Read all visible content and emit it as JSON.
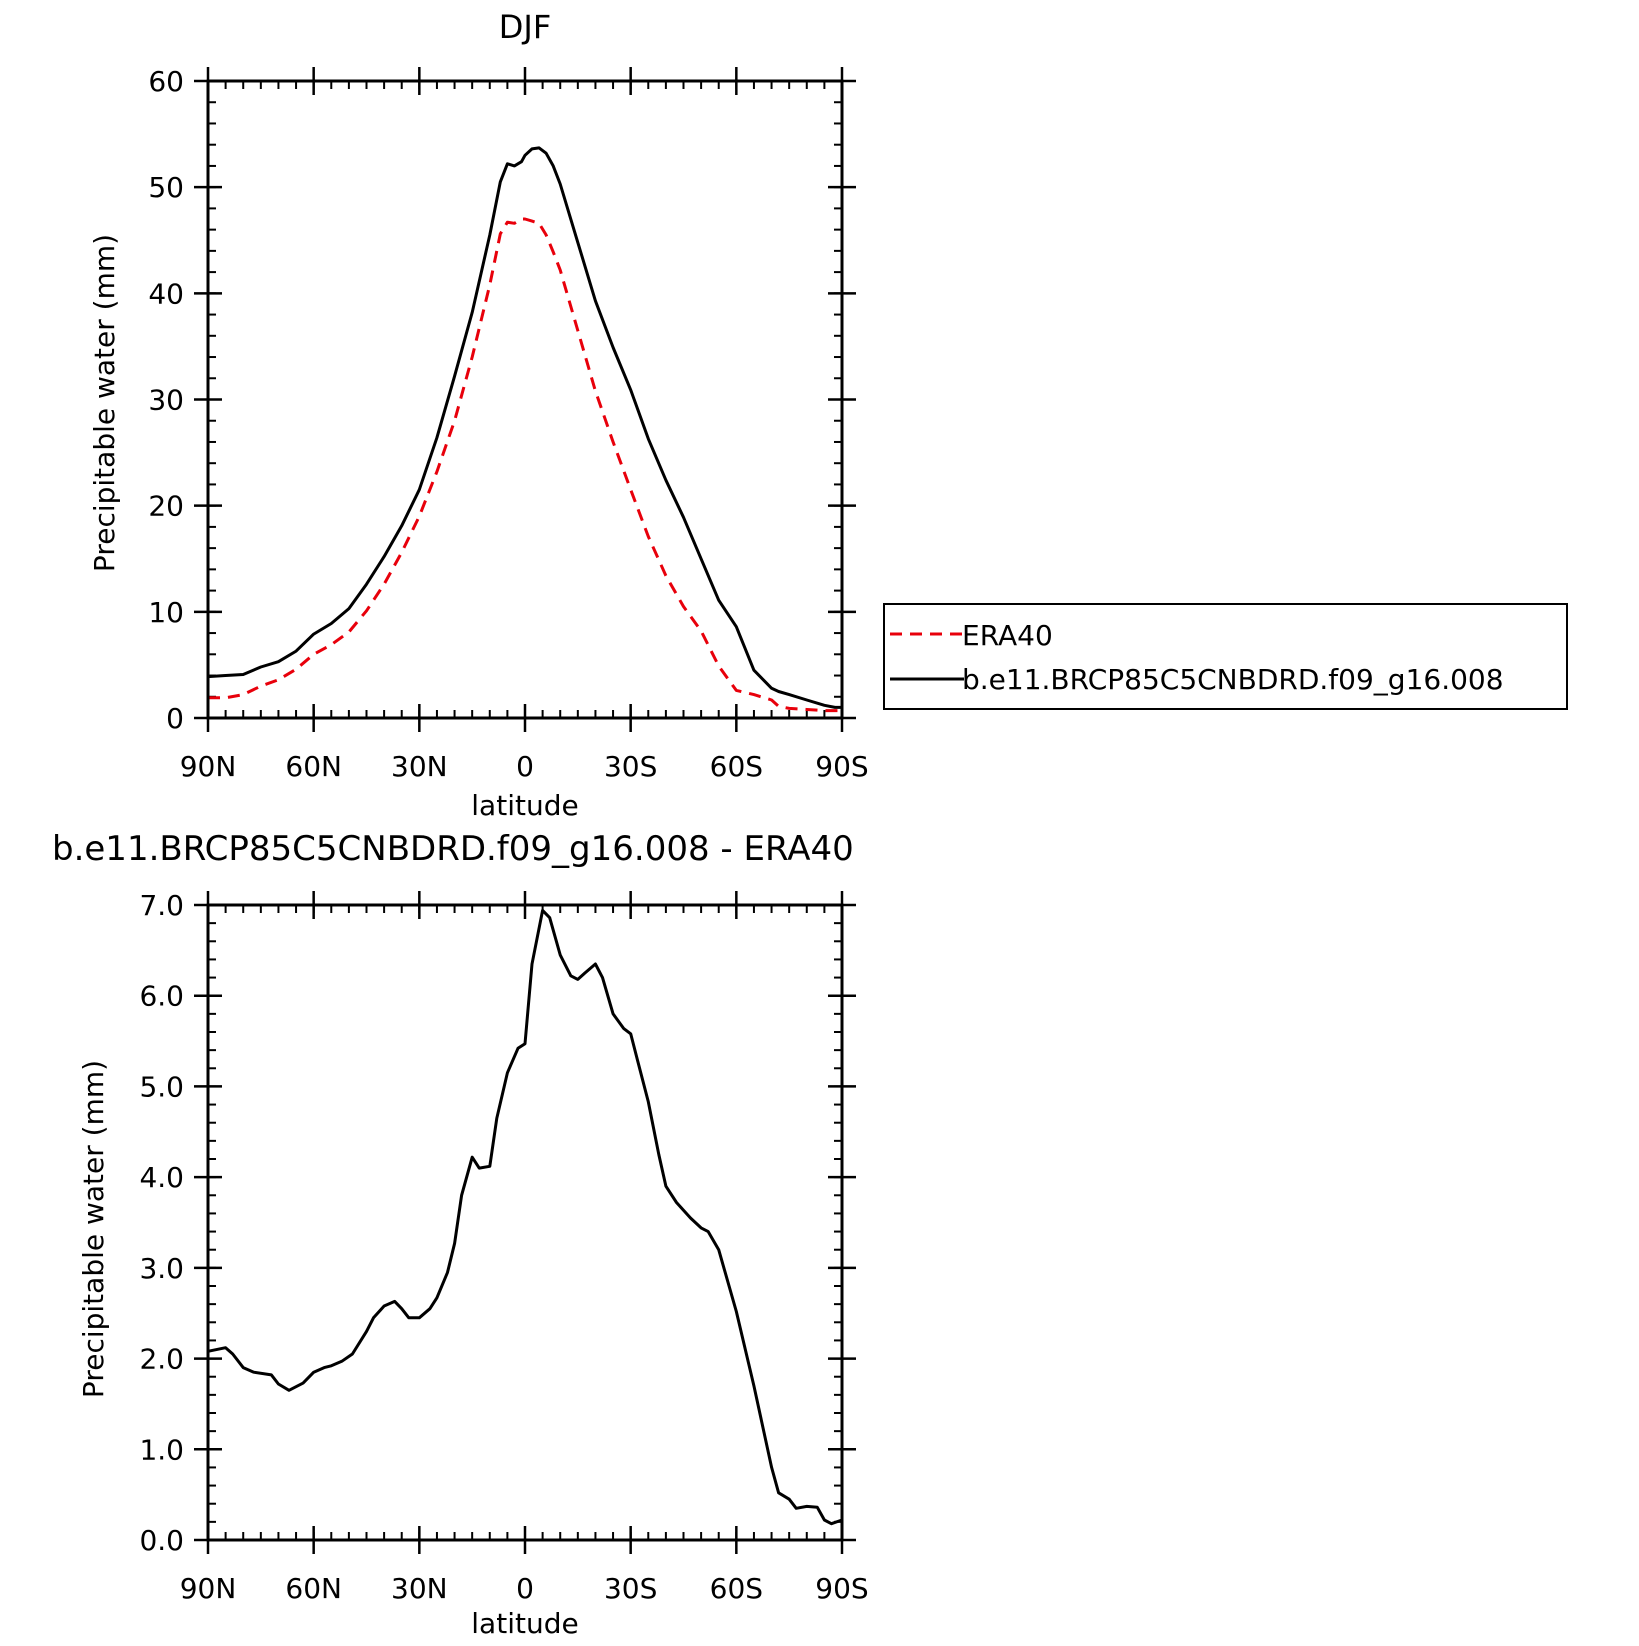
{
  "chart_data": [
    {
      "type": "line",
      "title": "DJF",
      "xlabel": "latitude",
      "ylabel": "Precipitable water (mm)",
      "xlim": [
        90,
        -90
      ],
      "ylim": [
        0,
        60
      ],
      "x_ticks": [
        90,
        60,
        30,
        0,
        -30,
        -60,
        -90
      ],
      "x_tick_labels": [
        "90N",
        "60N",
        "30N",
        "0",
        "30S",
        "60S",
        "90S"
      ],
      "y_ticks": [
        0,
        10,
        20,
        30,
        40,
        50,
        60
      ],
      "y_tick_labels": [
        "0",
        "10",
        "20",
        "30",
        "40",
        "50",
        "60"
      ],
      "grid": false,
      "legend_position": "right",
      "x": [
        90,
        85,
        80,
        75,
        70,
        65,
        60,
        55,
        50,
        45,
        40,
        35,
        30,
        25,
        20,
        15,
        10,
        7,
        5,
        3,
        1,
        0,
        -2,
        -4,
        -6,
        -8,
        -10,
        -15,
        -20,
        -25,
        -30,
        -35,
        -40,
        -45,
        -50,
        -55,
        -60,
        -65,
        -70,
        -72,
        -75,
        -80,
        -85,
        -88,
        -90
      ],
      "series": [
        {
          "name": "ERA40",
          "color": "#e8000b",
          "dash": "dashed",
          "values": [
            1.9,
            1.9,
            2.2,
            3.0,
            3.6,
            4.6,
            6.0,
            6.9,
            8.1,
            10.1,
            12.6,
            15.6,
            19.0,
            23.2,
            28.0,
            34.0,
            40.8,
            45.6,
            46.7,
            46.6,
            47.0,
            47.0,
            46.8,
            46.6,
            45.5,
            43.9,
            42.2,
            36.5,
            30.8,
            26.0,
            21.5,
            17.1,
            13.4,
            10.5,
            8.2,
            4.9,
            2.6,
            2.2,
            1.7,
            1.1,
            0.9,
            0.8,
            0.7,
            0.7,
            0.7
          ]
        },
        {
          "name": "b.e11.BRCP85C5CNBDRD.f09_g16.008",
          "color": "#000000",
          "dash": "solid",
          "values": [
            3.9,
            4.0,
            4.1,
            4.8,
            5.3,
            6.3,
            7.9,
            8.9,
            10.3,
            12.6,
            15.2,
            18.1,
            21.5,
            26.4,
            32.2,
            38.2,
            45.5,
            50.5,
            52.2,
            52.0,
            52.4,
            53.0,
            53.6,
            53.7,
            53.2,
            52.0,
            50.3,
            44.8,
            39.3,
            34.9,
            30.9,
            26.3,
            22.4,
            18.9,
            15.0,
            11.1,
            8.6,
            4.5,
            2.8,
            2.5,
            2.2,
            1.7,
            1.2,
            1.0,
            1.0
          ]
        }
      ]
    },
    {
      "type": "line",
      "title": "b.e11.BRCP85C5CNBDRD.f09_g16.008 - ERA40",
      "xlabel": "latitude",
      "ylabel": "Precipitable water (mm)",
      "xlim": [
        90,
        -90
      ],
      "ylim": [
        0,
        7
      ],
      "x_ticks": [
        90,
        60,
        30,
        0,
        -30,
        -60,
        -90
      ],
      "x_tick_labels": [
        "90N",
        "60N",
        "30N",
        "0",
        "30S",
        "60S",
        "90S"
      ],
      "y_ticks": [
        0,
        1,
        2,
        3,
        4,
        5,
        6,
        7
      ],
      "y_tick_labels": [
        "0.0",
        "1.0",
        "2.0",
        "3.0",
        "4.0",
        "5.0",
        "6.0",
        "7.0"
      ],
      "grid": false,
      "x": [
        90,
        85,
        83,
        80,
        77,
        72,
        70,
        67,
        63,
        60,
        57,
        55,
        52,
        49,
        45,
        43,
        40,
        37,
        35,
        33,
        30,
        27,
        25,
        22,
        20,
        18,
        15,
        13,
        10,
        8,
        5,
        2,
        0,
        -2,
        -5,
        -7,
        -10,
        -13,
        -15,
        -17,
        -20,
        -22,
        -25,
        -28,
        -30,
        -32,
        -35,
        -38,
        -40,
        -43,
        -47,
        -50,
        -52,
        -55,
        -60,
        -65,
        -70,
        -72,
        -75,
        -77,
        -80,
        -83,
        -85,
        -87,
        -90
      ],
      "series": [
        {
          "name": "",
          "color": "#000000",
          "dash": "solid",
          "values": [
            2.08,
            2.12,
            2.05,
            1.9,
            1.85,
            1.82,
            1.72,
            1.65,
            1.73,
            1.85,
            1.9,
            1.92,
            1.97,
            2.05,
            2.3,
            2.45,
            2.58,
            2.63,
            2.55,
            2.45,
            2.45,
            2.55,
            2.67,
            2.95,
            3.27,
            3.8,
            4.22,
            4.1,
            4.12,
            4.65,
            5.15,
            5.42,
            5.47,
            6.35,
            6.94,
            6.86,
            6.45,
            6.22,
            6.18,
            6.25,
            6.35,
            6.2,
            5.8,
            5.64,
            5.58,
            5.28,
            4.83,
            4.25,
            3.9,
            3.72,
            3.55,
            3.44,
            3.4,
            3.2,
            2.52,
            1.7,
            0.8,
            0.52,
            0.45,
            0.35,
            0.37,
            0.36,
            0.22,
            0.18,
            0.22
          ]
        }
      ]
    }
  ]
}
